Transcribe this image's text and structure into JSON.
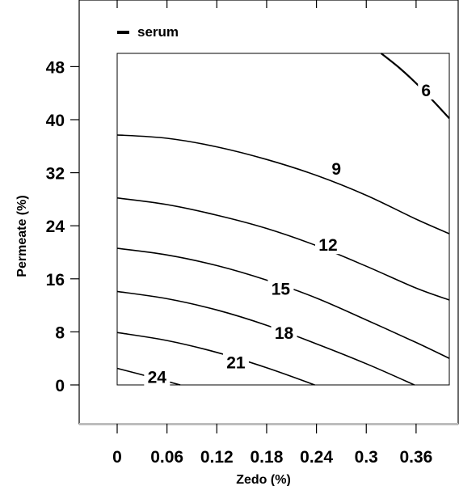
{
  "chart_data": {
    "type": "contour",
    "xlabel": "Zedo (%)",
    "ylabel": "Permeate (%)",
    "xlim": [
      -0.04,
      0.4
    ],
    "ylim": [
      -5,
      54
    ],
    "xticks": [
      0,
      0.06,
      0.12,
      0.18,
      0.24,
      0.3,
      0.36
    ],
    "xtick_labels": [
      "0",
      "0.06",
      "0.12",
      "0.18",
      "0.24",
      "0.3",
      "0.36"
    ],
    "yticks": [
      0,
      8,
      16,
      24,
      32,
      40,
      48
    ],
    "ytick_labels": [
      "0",
      "8",
      "16",
      "24",
      "32",
      "40",
      "48"
    ],
    "data_region": {
      "x": [
        0,
        0.4
      ],
      "y": [
        0,
        50
      ]
    },
    "legend": {
      "placement": "top-left",
      "entries": [
        {
          "label": "serum",
          "color": "#000000"
        }
      ]
    },
    "contours": [
      {
        "level": "24",
        "points": [
          [
            0,
            2.5
          ],
          [
            0.04,
            1.2
          ],
          [
            0.076,
            0
          ]
        ]
      },
      {
        "level": "21",
        "points": [
          [
            0,
            7.9
          ],
          [
            0.06,
            6.7
          ],
          [
            0.12,
            4.9
          ],
          [
            0.18,
            2.6
          ],
          [
            0.238,
            0
          ]
        ]
      },
      {
        "level": "18",
        "points": [
          [
            0,
            14.1
          ],
          [
            0.06,
            13.0
          ],
          [
            0.12,
            11.3
          ],
          [
            0.18,
            9.0
          ],
          [
            0.24,
            6.2
          ],
          [
            0.3,
            3.2
          ],
          [
            0.358,
            0
          ]
        ]
      },
      {
        "level": "15",
        "points": [
          [
            0,
            20.6
          ],
          [
            0.06,
            19.6
          ],
          [
            0.12,
            18.0
          ],
          [
            0.18,
            15.8
          ],
          [
            0.24,
            13.1
          ],
          [
            0.3,
            9.8
          ],
          [
            0.36,
            6.4
          ],
          [
            0.4,
            4.0
          ]
        ]
      },
      {
        "level": "12",
        "points": [
          [
            0,
            28.2
          ],
          [
            0.06,
            27.2
          ],
          [
            0.12,
            25.6
          ],
          [
            0.18,
            23.6
          ],
          [
            0.24,
            21.0
          ],
          [
            0.3,
            17.9
          ],
          [
            0.36,
            14.6
          ],
          [
            0.4,
            12.8
          ]
        ]
      },
      {
        "level": "9",
        "points": [
          [
            0,
            37.7
          ],
          [
            0.06,
            37.2
          ],
          [
            0.12,
            35.9
          ],
          [
            0.18,
            34.0
          ],
          [
            0.24,
            31.6
          ],
          [
            0.3,
            28.6
          ],
          [
            0.36,
            25.0
          ],
          [
            0.4,
            22.8
          ]
        ]
      },
      {
        "level": "6",
        "points": [
          [
            0.318,
            50.0
          ],
          [
            0.34,
            47.8
          ],
          [
            0.36,
            45.5
          ],
          [
            0.38,
            42.9
          ],
          [
            0.4,
            40.2
          ]
        ]
      }
    ],
    "contour_label_positions": [
      {
        "level": "24",
        "x": 0.048,
        "y": 1.3
      },
      {
        "level": "21",
        "x": 0.143,
        "y": 3.5
      },
      {
        "level": "18",
        "x": 0.201,
        "y": 7.9
      },
      {
        "level": "15",
        "x": 0.197,
        "y": 14.6
      },
      {
        "level": "12",
        "x": 0.254,
        "y": 21.2
      },
      {
        "level": "9",
        "x": 0.264,
        "y": 32.7
      },
      {
        "level": "6",
        "x": 0.372,
        "y": 44.5
      }
    ]
  }
}
